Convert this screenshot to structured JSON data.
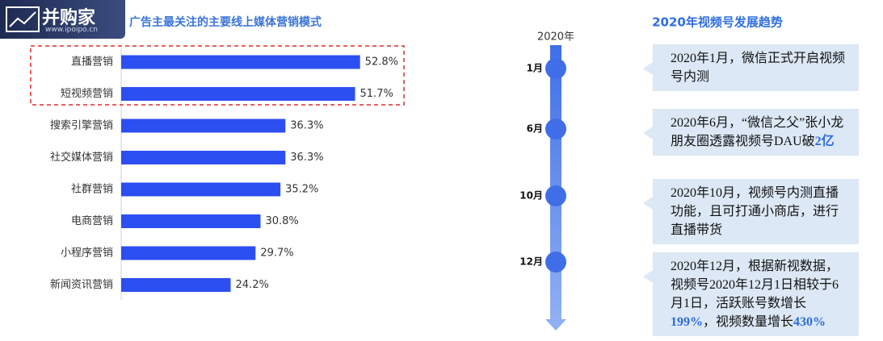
{
  "logo": {
    "name": "并购家",
    "url": "www.ipoipo.cn"
  },
  "chart_data": {
    "type": "bar",
    "orientation": "horizontal",
    "title": "广告主最关注的主要线上媒体营销模式",
    "categories": [
      "直播营销",
      "短视频营销",
      "搜索引擎营销",
      "社交媒体营销",
      "社群营销",
      "电商营销",
      "小程序营销",
      "新闻资讯营销"
    ],
    "values": [
      52.8,
      51.7,
      36.3,
      36.3,
      35.2,
      30.8,
      29.7,
      24.2
    ],
    "value_labels": [
      "52.8%",
      "51.7%",
      "36.3%",
      "36.3%",
      "35.2%",
      "30.8%",
      "29.7%",
      "24.2%"
    ],
    "color": "#2c4ff2",
    "highlight_color": "#e02b2b"
  },
  "timeline": {
    "title": "2020年视频号发展趋势",
    "year": "2020年",
    "items": [
      {
        "month": "1月",
        "parts": [
          {
            "text": "2020年1月，微信正式开启视频号内测"
          }
        ]
      },
      {
        "month": "6月",
        "parts": [
          {
            "text": "2020年6月，“微信之父”张小龙朋友圈透露视频号DAU破"
          },
          {
            "text": "2亿",
            "highlight": true
          }
        ]
      },
      {
        "month": "10月",
        "parts": [
          {
            "text": "2020年10月，视频号内测直播功能，且可打通小商店，进行直播带货"
          }
        ]
      },
      {
        "month": "12月",
        "parts": [
          {
            "text": "2020年12月，根据新视数据，视频号2020年12月1日相较于6月1日，活跃账号数增长"
          },
          {
            "text": "199%",
            "highlight": true
          },
          {
            "text": "，视频数量增长"
          },
          {
            "text": "430%",
            "highlight": true
          }
        ]
      }
    ]
  }
}
